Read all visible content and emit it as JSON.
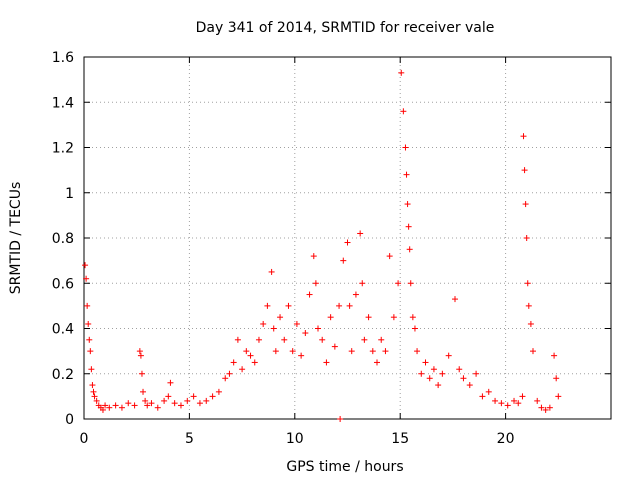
{
  "chart_data": {
    "type": "scatter",
    "title": "Day 341 of 2014, SRMTID for receiver vale",
    "xlabel": "GPS time / hours",
    "ylabel": "SRMTID / TECUs",
    "xlim": [
      0,
      25
    ],
    "ylim": [
      0,
      1.6
    ],
    "xticks": [
      0,
      5,
      10,
      15,
      20
    ],
    "xtick_labels": [
      "0",
      "5",
      "10",
      "15",
      "20"
    ],
    "yticks": [
      0,
      0.2,
      0.4,
      0.6,
      0.8,
      1.0,
      1.2,
      1.4,
      1.6
    ],
    "ytick_labels": [
      "0",
      "0.2",
      "0.4",
      "0.6",
      "0.8",
      "1",
      "1.2",
      "1.4",
      "1.6"
    ],
    "grid": true,
    "marker": "+",
    "series": [
      {
        "name": "SRMTID",
        "color": "#ff0000",
        "x": [
          0.05,
          0.1,
          0.15,
          0.2,
          0.25,
          0.3,
          0.35,
          0.4,
          0.45,
          0.5,
          0.6,
          0.7,
          0.8,
          0.9,
          1.0,
          1.2,
          1.5,
          1.8,
          2.1,
          2.4,
          2.65,
          2.7,
          2.75,
          2.8,
          2.9,
          3.0,
          3.2,
          3.5,
          3.8,
          4.0,
          4.1,
          4.3,
          4.6,
          4.9,
          5.2,
          5.5,
          5.8,
          6.1,
          6.4,
          6.7,
          6.9,
          7.1,
          7.3,
          7.5,
          7.7,
          7.9,
          8.1,
          8.3,
          8.5,
          8.7,
          8.9,
          9.0,
          9.1,
          9.3,
          9.5,
          9.7,
          9.9,
          10.1,
          10.3,
          10.5,
          10.7,
          10.9,
          11.0,
          11.1,
          11.3,
          11.5,
          11.7,
          11.9,
          12.1,
          12.15,
          12.3,
          12.5,
          12.6,
          12.7,
          12.9,
          13.1,
          13.2,
          13.3,
          13.5,
          13.7,
          13.9,
          14.1,
          14.3,
          14.5,
          14.7,
          14.9,
          15.05,
          15.15,
          15.25,
          15.3,
          15.35,
          15.4,
          15.45,
          15.5,
          15.6,
          15.7,
          15.8,
          16.0,
          16.2,
          16.4,
          16.6,
          16.8,
          17.0,
          17.3,
          17.6,
          17.8,
          18.0,
          18.3,
          18.6,
          18.9,
          19.2,
          19.5,
          19.8,
          20.1,
          20.4,
          20.6,
          20.8,
          20.85,
          20.9,
          20.95,
          21.0,
          21.05,
          21.1,
          21.2,
          21.3,
          21.5,
          21.7,
          21.9,
          22.1,
          22.3,
          22.4,
          22.5
        ],
        "y": [
          0.68,
          0.62,
          0.5,
          0.42,
          0.35,
          0.3,
          0.22,
          0.15,
          0.12,
          0.1,
          0.08,
          0.06,
          0.05,
          0.04,
          0.06,
          0.05,
          0.06,
          0.05,
          0.07,
          0.06,
          0.3,
          0.28,
          0.2,
          0.12,
          0.08,
          0.06,
          0.07,
          0.05,
          0.08,
          0.1,
          0.16,
          0.07,
          0.06,
          0.08,
          0.1,
          0.07,
          0.08,
          0.1,
          0.12,
          0.18,
          0.2,
          0.25,
          0.35,
          0.22,
          0.3,
          0.28,
          0.25,
          0.35,
          0.42,
          0.5,
          0.65,
          0.4,
          0.3,
          0.45,
          0.35,
          0.5,
          0.3,
          0.42,
          0.28,
          0.38,
          0.55,
          0.72,
          0.6,
          0.4,
          0.35,
          0.25,
          0.45,
          0.32,
          0.5,
          0.0,
          0.7,
          0.78,
          0.5,
          0.3,
          0.55,
          0.82,
          0.6,
          0.35,
          0.45,
          0.3,
          0.25,
          0.35,
          0.3,
          0.72,
          0.45,
          0.6,
          1.53,
          1.36,
          1.2,
          1.08,
          0.95,
          0.85,
          0.75,
          0.6,
          0.45,
          0.4,
          0.3,
          0.2,
          0.25,
          0.18,
          0.22,
          0.15,
          0.2,
          0.28,
          0.53,
          0.22,
          0.18,
          0.15,
          0.2,
          0.1,
          0.12,
          0.08,
          0.07,
          0.06,
          0.08,
          0.07,
          0.1,
          1.25,
          1.1,
          0.95,
          0.8,
          0.6,
          0.5,
          0.42,
          0.3,
          0.08,
          0.05,
          0.04,
          0.05,
          0.28,
          0.18,
          0.1
        ]
      }
    ]
  }
}
